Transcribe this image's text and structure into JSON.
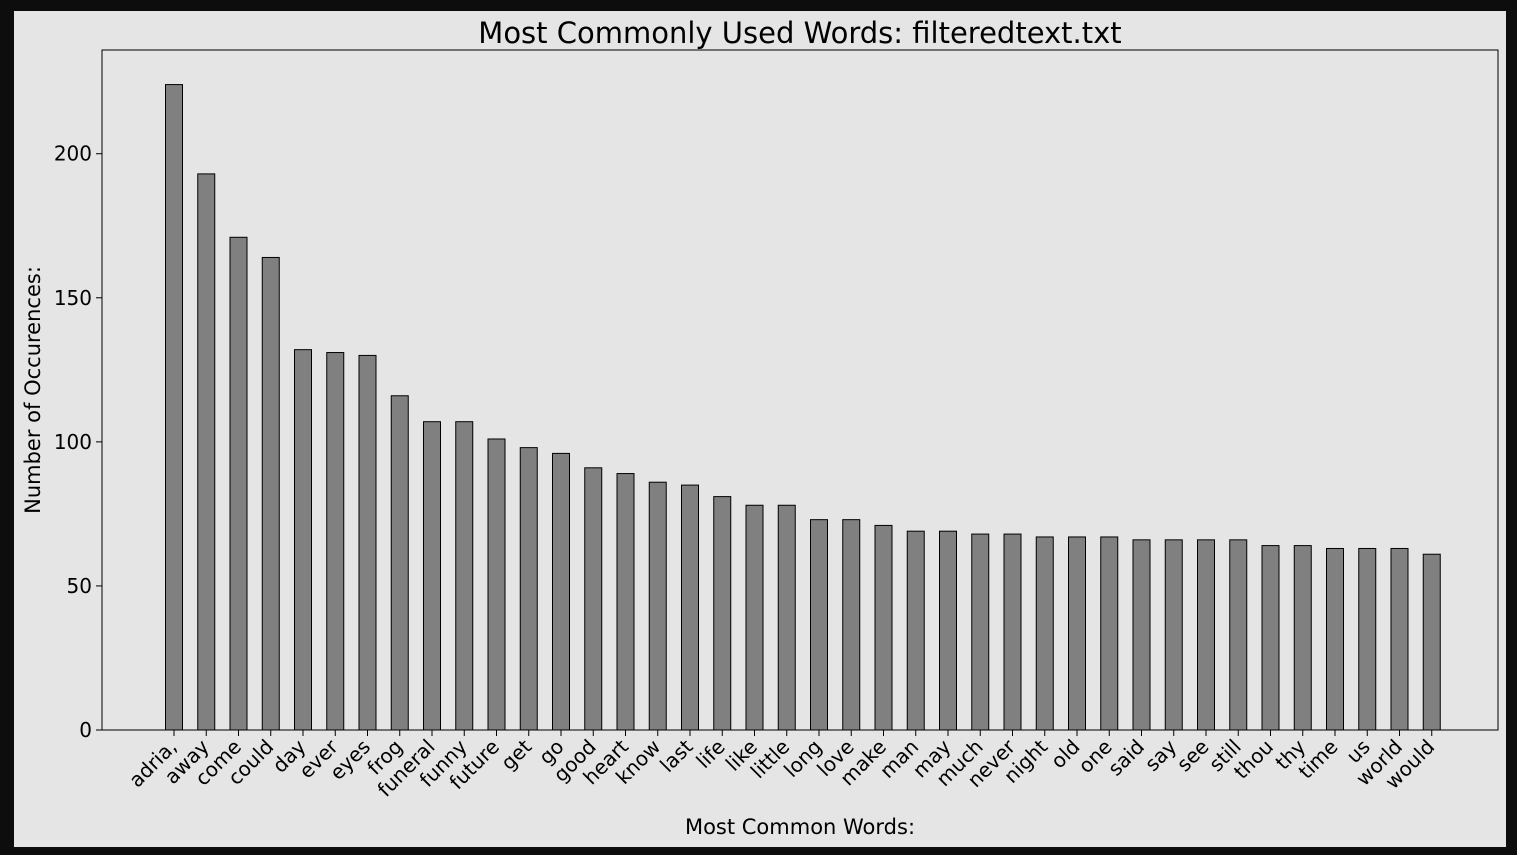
{
  "chart_data": {
    "type": "bar",
    "title": "Most Commonly Used Words: filteredtext.txt",
    "xlabel": "Most Common Words:",
    "ylabel": "Number of Occurences:",
    "ylim": [
      0,
      236
    ],
    "yticks": [
      0,
      50,
      100,
      150,
      200
    ],
    "grid": false,
    "bar_color": "#808080",
    "bar_edge_color": "#000000",
    "categories": [
      "adria,",
      "away",
      "come",
      "could",
      "day",
      "ever",
      "eyes",
      "frog",
      "funeral",
      "funny",
      "future",
      "get",
      "go",
      "good",
      "heart",
      "know",
      "last",
      "life",
      "like",
      "little",
      "long",
      "love",
      "make",
      "man",
      "may",
      "much",
      "never",
      "night",
      "old",
      "one",
      "said",
      "say",
      "see",
      "still",
      "thou",
      "thy",
      "time",
      "us",
      "world",
      "would"
    ],
    "values": [
      224,
      193,
      171,
      164,
      132,
      131,
      130,
      116,
      107,
      107,
      101,
      98,
      96,
      91,
      89,
      86,
      85,
      81,
      78,
      78,
      73,
      73,
      71,
      69,
      69,
      68,
      68,
      67,
      67,
      67,
      66,
      66,
      66,
      66,
      64,
      64,
      63,
      63,
      63,
      61
    ]
  }
}
